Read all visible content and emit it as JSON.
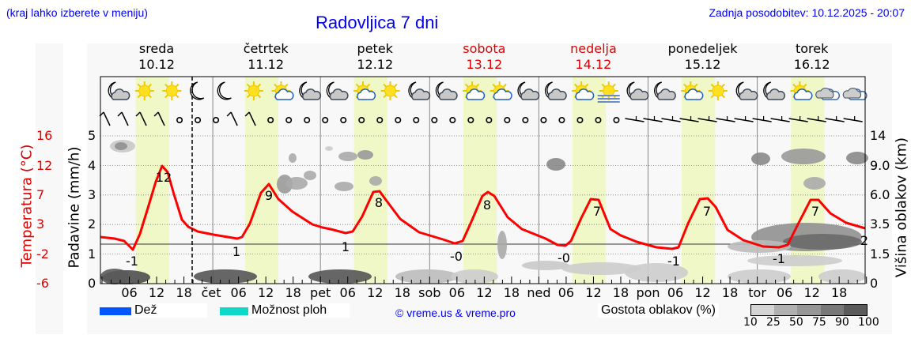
{
  "header": {
    "hint": "(kraj lahko izberete v meniju)",
    "title": "Radovljica 7 dni",
    "updated": "Zadnja posodobitev: 10.12.2025 - 20:07"
  },
  "days": [
    {
      "name": "sreda",
      "date": "10.12",
      "weekend": false
    },
    {
      "name": "četrtek",
      "date": "11.12",
      "weekend": false
    },
    {
      "name": "petek",
      "date": "12.12",
      "weekend": false
    },
    {
      "name": "sobota",
      "date": "13.12",
      "weekend": true
    },
    {
      "name": "nedelja",
      "date": "14.12",
      "weekend": true
    },
    {
      "name": "ponedeljek",
      "date": "15.12",
      "weekend": false
    },
    {
      "name": "torek",
      "date": "16.12",
      "weekend": false
    }
  ],
  "axes": {
    "left_temp_label": "Temperatura (°C)",
    "left_temp_ticks": [
      "16",
      "12",
      "7",
      "3",
      "-2",
      "-6"
    ],
    "left_precip_label": "Padavine (mm/h)",
    "left_precip_ticks": [
      "5",
      "4",
      "3",
      "2",
      "1",
      "0"
    ],
    "right_label": "Višina oblakov (km)",
    "right_ticks": [
      "14",
      "9.0",
      "6.0",
      "3.5",
      "1.5",
      "0"
    ],
    "x_ticks": [
      "06",
      "12",
      "18",
      "čet",
      "06",
      "12",
      "18",
      "pet",
      "06",
      "12",
      "18",
      "sob",
      "06",
      "12",
      "18",
      "ned",
      "06",
      "12",
      "18",
      "pon",
      "06",
      "12",
      "18",
      "tor",
      "06",
      "12",
      "18"
    ]
  },
  "legend": {
    "rain_label": "Dež",
    "rain_color": "#0055ff",
    "storm_label": "Možnost ploh",
    "storm_color": "#10d8c8",
    "copyright": "© vreme.us & vreme.pro",
    "density_label": "Gostota oblakov (%)",
    "density_ticks": [
      "10",
      "25",
      "50",
      "75",
      "90",
      "100"
    ],
    "density_colors": [
      "#d4d4d4",
      "#b0b0b0",
      "#969696",
      "#787878",
      "#5a5a5a"
    ]
  },
  "colors": {
    "temp_line": "#ff0000",
    "daylight_band": "#f0f8c8",
    "weekend_text": "#e00000",
    "link_blue": "#0000ee"
  },
  "weather_icons": [
    "moon-cloud",
    "sun",
    "sun",
    "moon",
    "moon",
    "sun",
    "sun-cloud",
    "moon-cloud",
    "moon-cloud",
    "sun-cloud",
    "sun",
    "moon-cloud",
    "moon-cloud",
    "sun-cloud",
    "sun-cloud",
    "moon-cloud",
    "moon-cloud",
    "sun-cloud",
    "sun-fog",
    "moon-cloud",
    "moon-cloud",
    "sun-cloud",
    "sun",
    "moon-cloud",
    "moon-cloud",
    "sun-cloud",
    "cloud",
    "cloud"
  ],
  "chart_data": {
    "type": "line",
    "title": "Radovljica 7 dni",
    "xlabel": "",
    "ylabel": "Temperatura (°C) / Padavine (mm/h)",
    "ylabel_right": "Višina oblakov (km)",
    "x_range": [
      "10.12 00:00",
      "16.12 24:00"
    ],
    "temp_ylim": [
      -6,
      16
    ],
    "precip_ylim": [
      0,
      5
    ],
    "grid": true,
    "series": [
      {
        "name": "Temperatura (°C)",
        "x": [
          "10.12 00",
          "10.12 03",
          "10.12 07",
          "10.12 10",
          "10.12 14",
          "10.12 17",
          "10.12 20",
          "11.12 00",
          "11.12 07",
          "11.12 10",
          "11.12 14",
          "11.12 17",
          "11.12 22",
          "12.12 07",
          "12.12 10",
          "12.12 13",
          "12.12 17",
          "12.12 22",
          "13.12 07",
          "13.12 10",
          "13.12 13",
          "13.12 17",
          "13.12 22",
          "14.12 07",
          "14.12 10",
          "14.12 13",
          "14.12 17",
          "14.12 22",
          "15.12 07",
          "15.12 10",
          "15.12 13",
          "15.12 17",
          "15.12 22",
          "16.12 07",
          "16.12 10",
          "16.12 13",
          "16.12 17",
          "16.12 23"
        ],
        "values": [
          2,
          1.8,
          -1,
          4,
          12,
          8,
          3,
          2,
          1,
          3,
          9,
          5,
          2,
          1,
          3,
          8,
          5,
          2,
          0,
          3,
          8,
          5,
          2,
          0,
          3,
          7,
          4,
          1.5,
          -1,
          2,
          7,
          3,
          0.5,
          -1,
          1,
          7,
          4,
          2.5
        ]
      }
    ],
    "annotations": [
      {
        "x": "10.12 07",
        "label": "-1"
      },
      {
        "x": "10.12 13",
        "label": "12"
      },
      {
        "x": "11.12 07",
        "label": "1"
      },
      {
        "x": "11.12 13",
        "label": "9"
      },
      {
        "x": "12.12 06",
        "label": "1"
      },
      {
        "x": "12.12 13",
        "label": "8"
      },
      {
        "x": "13.12 06",
        "label": "-0"
      },
      {
        "x": "13.12 13",
        "label": "8"
      },
      {
        "x": "14.12 06",
        "label": "-0"
      },
      {
        "x": "14.12 13",
        "label": "7"
      },
      {
        "x": "15.12 06",
        "label": "-1"
      },
      {
        "x": "15.12 13",
        "label": "7"
      },
      {
        "x": "16.12 06",
        "label": "-1"
      },
      {
        "x": "16.12 13",
        "label": "7"
      },
      {
        "x": "16.12 24",
        "label": "2"
      }
    ],
    "now_marker": "10.12 20:07",
    "precipitation": "none"
  }
}
